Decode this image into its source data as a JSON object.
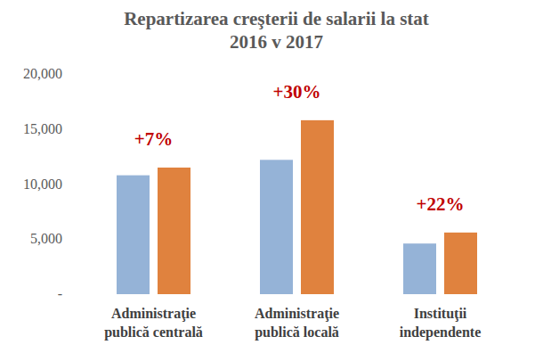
{
  "chart_data": {
    "type": "bar",
    "title": "Repartizarea creşterii de salarii la stat",
    "subtitle": "2016 v 2017",
    "categories": [
      "Administraţie publică centrală",
      "Administraţie publică locală",
      "Instituţii independente"
    ],
    "series": [
      {
        "color": "#95b3d7",
        "values": [
          10800,
          12200,
          4600
        ]
      },
      {
        "color": "#e0823e",
        "values": [
          11500,
          15800,
          5600
        ]
      }
    ],
    "annotations": [
      "+7%",
      "+30%",
      "+22%"
    ],
    "ylim": [
      0,
      20000
    ],
    "yticks": [
      {
        "value": 0,
        "label": "-"
      },
      {
        "value": 5000,
        "label": "5,000"
      },
      {
        "value": 10000,
        "label": "10,000"
      },
      {
        "value": 15000,
        "label": "15,000"
      },
      {
        "value": 20000,
        "label": "20,000"
      }
    ],
    "grid": false
  }
}
